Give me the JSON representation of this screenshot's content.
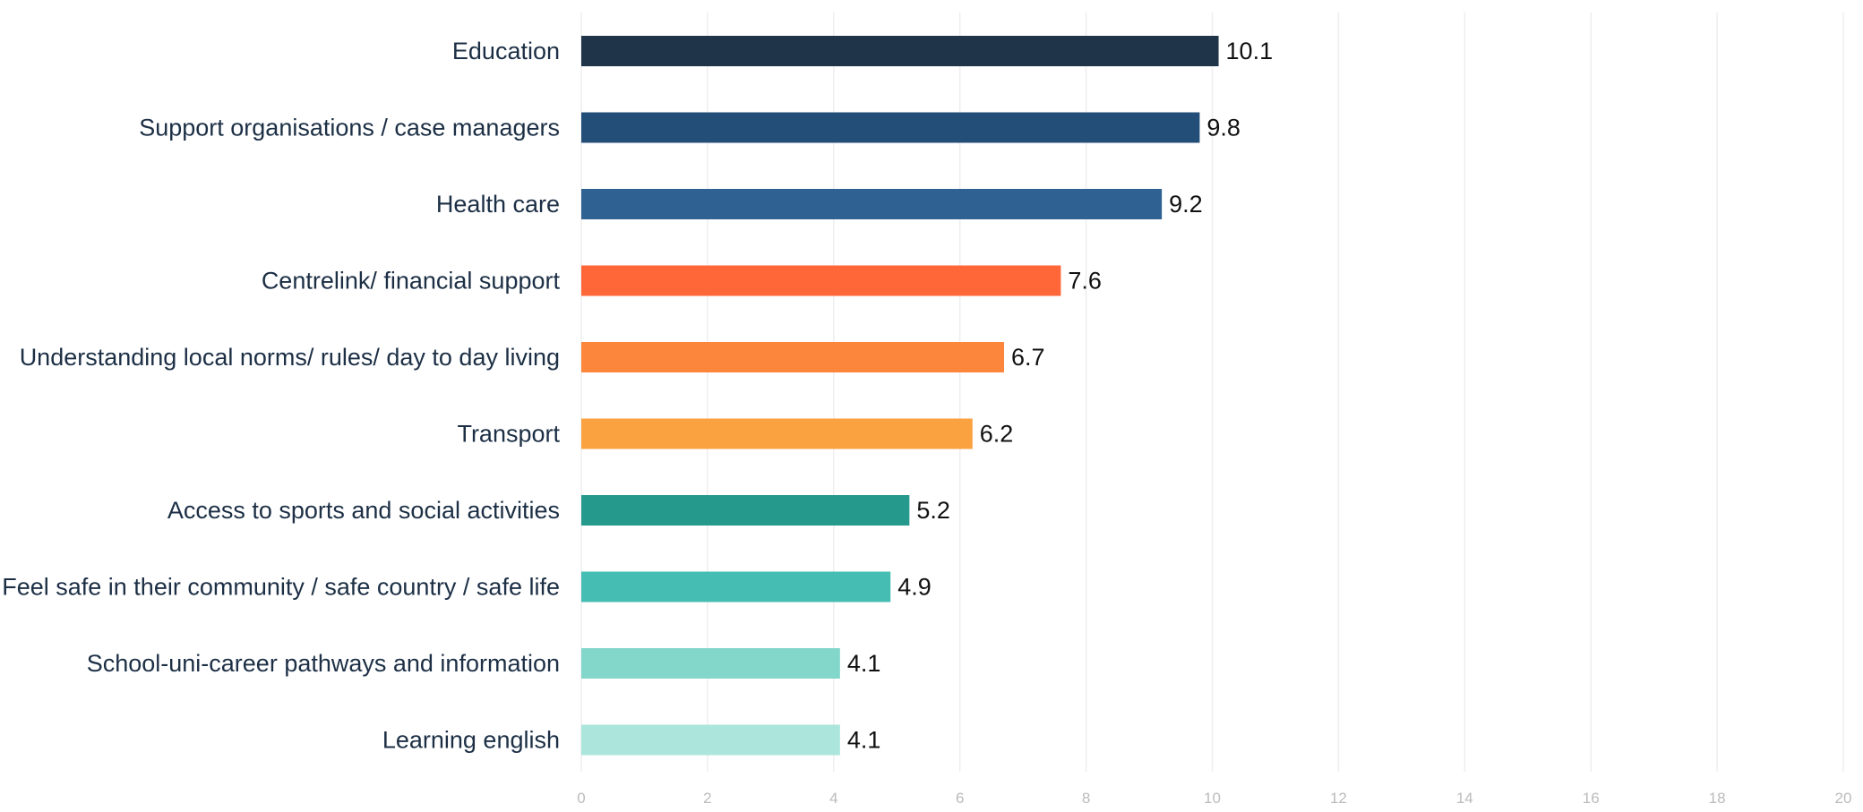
{
  "chart_data": {
    "type": "bar",
    "orientation": "horizontal",
    "title": "",
    "xlabel": "",
    "ylabel": "",
    "xlim": [
      0,
      20
    ],
    "x_ticks": [
      0,
      2,
      4,
      6,
      8,
      10,
      12,
      14,
      16,
      18,
      20
    ],
    "grid": true,
    "legend": "none",
    "categories": [
      "Education",
      "Support organisations / case managers",
      "Health care",
      "Centrelink/ financial support",
      "Understanding local norms/ rules/ day to day living",
      "Transport",
      "Access to sports and social activities",
      "Feel safe in their community / safe country / safe life",
      "School-uni-career pathways and information",
      "Learning english"
    ],
    "values": [
      10.1,
      9.8,
      9.2,
      7.6,
      6.7,
      6.2,
      5.2,
      4.9,
      4.1,
      4.1
    ],
    "value_labels": [
      "10.1",
      "9.8",
      "9.2",
      "7.6",
      "6.7",
      "6.2",
      "5.2",
      "4.9",
      "4.1",
      "4.1"
    ],
    "colors": [
      "#1f3349",
      "#234e78",
      "#2f6193",
      "#ff6638",
      "#fc863c",
      "#fba240",
      "#26998d",
      "#45bdb2",
      "#83d6ca",
      "#abe5db"
    ]
  }
}
